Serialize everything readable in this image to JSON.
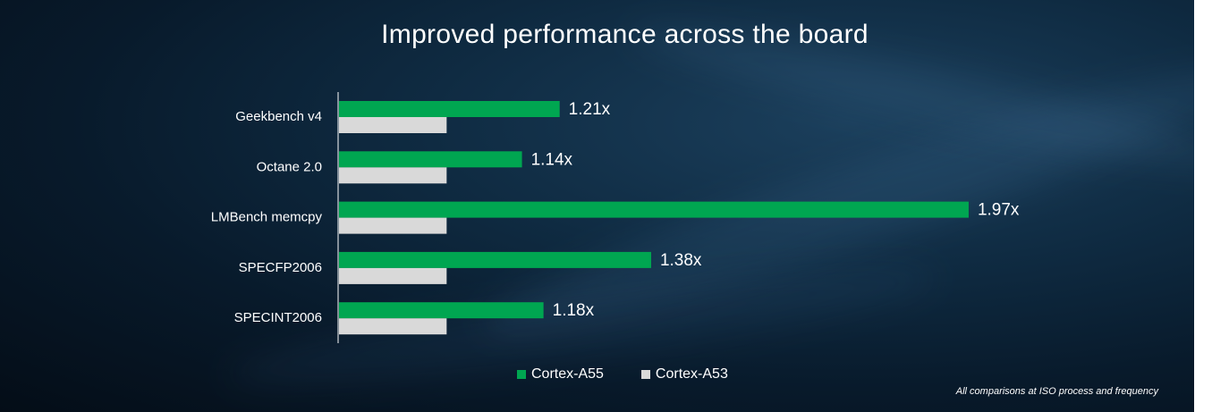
{
  "title": "Improved performance across the board",
  "footnote": "All comparisons at ISO process and frequency",
  "colors": {
    "cortex_a55": "#00a651",
    "cortex_a53": "#d9d9d9"
  },
  "chart_data": {
    "type": "bar",
    "orientation": "horizontal",
    "title": "Improved performance across the board",
    "categories": [
      "Geekbench v4",
      "Octane 2.0",
      "LMBench memcpy",
      "SPECFP2006",
      "SPECINT2006"
    ],
    "series": [
      {
        "name": "Cortex-A55",
        "values": [
          1.21,
          1.14,
          1.97,
          1.38,
          1.18
        ],
        "labels": [
          "1.21x",
          "1.14x",
          "1.97x",
          "1.38x",
          "1.18x"
        ]
      },
      {
        "name": "Cortex-A53",
        "values": [
          1,
          1,
          1,
          1,
          1
        ]
      }
    ],
    "xlim": [
      0.8,
      2.0
    ],
    "grid": false,
    "legend": "bottom-center"
  }
}
